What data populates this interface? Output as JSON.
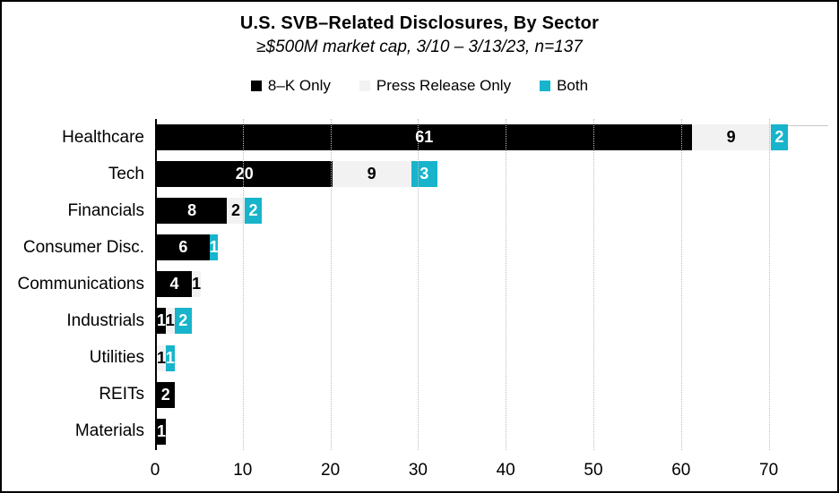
{
  "chart_data": {
    "type": "bar",
    "orientation": "horizontal-stacked",
    "title": "U.S. SVB–Related Disclosures, By Sector",
    "subtitle": "≥$500M market cap, 3/10 – 3/13/23, n=137",
    "categories": [
      "Healthcare",
      "Tech",
      "Financials",
      "Consumer Disc.",
      "Communications",
      "Industrials",
      "Utilities",
      "REITs",
      "Materials"
    ],
    "series": [
      {
        "name": "8–K Only",
        "color": "#000000",
        "label_color": "#ffffff",
        "values": [
          61,
          20,
          8,
          6,
          4,
          1,
          0,
          2,
          1
        ]
      },
      {
        "name": "Press Release Only",
        "color": "#f2f2f2",
        "label_color": "#000000",
        "values": [
          9,
          9,
          2,
          0,
          1,
          1,
          1,
          0,
          0
        ]
      },
      {
        "name": "Both",
        "color": "#17b4cb",
        "label_color": "#ffffff",
        "values": [
          2,
          3,
          2,
          1,
          0,
          2,
          1,
          0,
          0
        ]
      }
    ],
    "x_ticks": [
      0,
      10,
      20,
      30,
      40,
      50,
      60,
      70
    ],
    "xlim": [
      0,
      76.8
    ],
    "grid": "vertical-dotted",
    "legend_position": "top-center",
    "axis_color": "#000000",
    "gridline_color": "#bdbdbd",
    "plot_top_border_color": "#c9c9c9"
  }
}
